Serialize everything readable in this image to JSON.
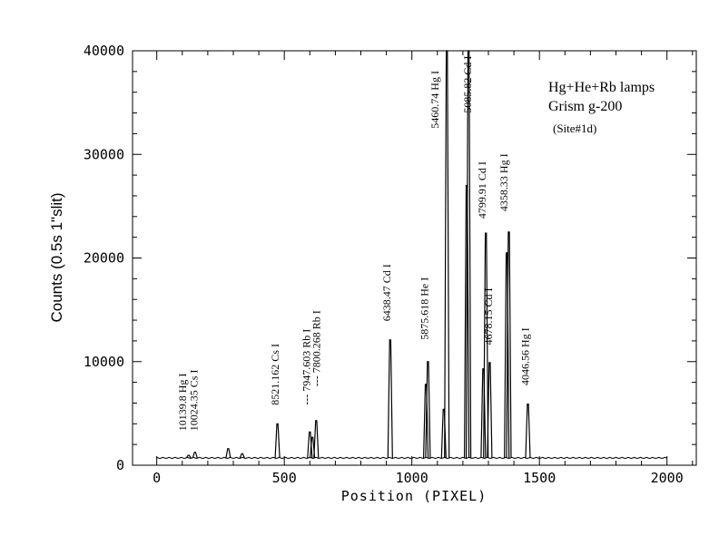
{
  "chart_data": {
    "type": "line",
    "xlabel": "Position (PIXEL)",
    "ylabel": "Counts  (0.5s 1\"slit)",
    "xlim": [
      -95,
      2115
    ],
    "ylim": [
      0,
      40000
    ],
    "xticks": [
      0,
      500,
      1000,
      1500,
      2000
    ],
    "yticks": [
      0,
      10000,
      20000,
      30000,
      40000
    ],
    "xtick_labels": [
      "0",
      "500",
      "1000",
      "1500",
      "2000"
    ],
    "ytick_labels": [
      "0",
      "10000",
      "20000",
      "30000",
      "40000"
    ],
    "grid": false,
    "legend": "none",
    "baseline": 700,
    "x_range": [
      0,
      2000
    ],
    "peaks": [
      {
        "x": 125,
        "y": 950
      },
      {
        "x": 150,
        "y": 1250
      },
      {
        "x": 280,
        "y": 1600
      },
      {
        "x": 335,
        "y": 1100
      },
      {
        "x": 473,
        "y": 4000
      },
      {
        "x": 600,
        "y": 3200
      },
      {
        "x": 610,
        "y": 2700
      },
      {
        "x": 625,
        "y": 4300
      },
      {
        "x": 915,
        "y": 12100
      },
      {
        "x": 1055,
        "y": 7800
      },
      {
        "x": 1063,
        "y": 10000
      },
      {
        "x": 1125,
        "y": 5400
      },
      {
        "x": 1137,
        "y": 40000
      },
      {
        "x": 1215,
        "y": 27000
      },
      {
        "x": 1222,
        "y": 40000
      },
      {
        "x": 1280,
        "y": 9300
      },
      {
        "x": 1290,
        "y": 22400
      },
      {
        "x": 1305,
        "y": 9900
      },
      {
        "x": 1372,
        "y": 20500
      },
      {
        "x": 1380,
        "y": 22500
      },
      {
        "x": 1455,
        "y": 5900
      }
    ],
    "annotations": [
      {
        "text": "10139.8 Hg I",
        "x": 115,
        "y": 3300
      },
      {
        "text": "10024.35 Cs I",
        "x": 160,
        "y": 3300
      },
      {
        "text": "8521.162 Cs I",
        "x": 478,
        "y": 5800
      },
      {
        "text": "---  7947.603 Rb I",
        "x": 600,
        "y": 5800
      },
      {
        "text": "---  7800.268 Rb I",
        "x": 640,
        "y": 7600
      },
      {
        "text": "6438.47 Cd I",
        "x": 915,
        "y": 13900
      },
      {
        "text": "5875.618 He I",
        "x": 1063,
        "y": 12100
      },
      {
        "text": "5460.74 Hg I",
        "x": 1105,
        "y": 32500
      },
      {
        "text": "5085.82 Cd I",
        "x": 1233,
        "y": 34000
      },
      {
        "text": "4799.91 Cd I",
        "x": 1290,
        "y": 23800
      },
      {
        "text": "4358.33 Hg I",
        "x": 1375,
        "y": 24500
      },
      {
        "text": "4678.15 Cd I",
        "x": 1314,
        "y": 11600
      },
      {
        "text": "4046.56 Hg I",
        "x": 1458,
        "y": 7700
      }
    ],
    "info": {
      "line1": "Hg+He+Rb lamps",
      "line2": "Grism g-200",
      "line3": "(Site#1d)"
    }
  }
}
